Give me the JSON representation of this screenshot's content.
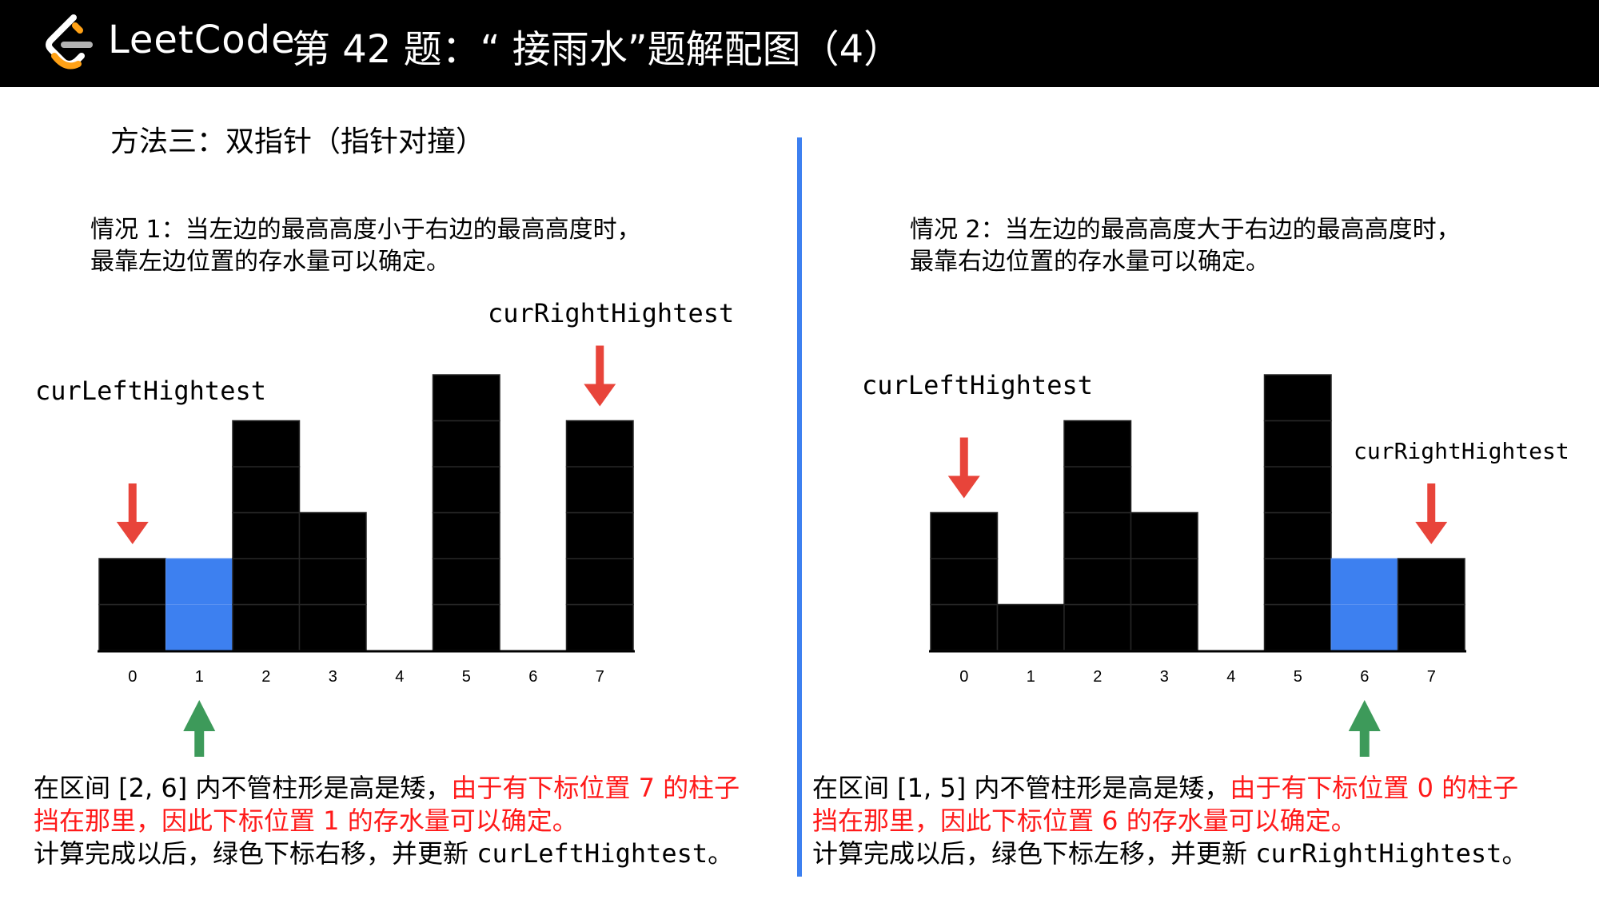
{
  "header": {
    "brand": "LeetCode",
    "title": "第 42 题：“ 接雨水”题解配图（4）"
  },
  "method_title": "方法三：双指针（指针对撞）",
  "left": {
    "case_line1": "情况 1：当左边的最高高度小于右边的最高高度时，",
    "case_line2": "最靠左边位置的存水量可以确定。",
    "left_label": "curLeftHightest",
    "right_label": "curRightHightest",
    "bottom_line1_black": "在区间 [2, 6] 内不管柱形是高是矮，",
    "bottom_line1_red": "由于有下标位置 7 的柱子",
    "bottom_line2_red": "挡在那里，因此下标位置 1 的存水量可以确定。",
    "bottom_line3_prefix": "计算完成以后，绿色下标右移，并更新 ",
    "bottom_line3_code": "curLeftHightest",
    "bottom_line3_suffix": "。"
  },
  "right": {
    "case_line1": "情况 2：当左边的最高高度大于右边的最高高度时，",
    "case_line2": "最靠右边位置的存水量可以确定。",
    "left_label": "curLeftHightest",
    "right_label": "curRightHightest",
    "bottom_line1_black": "在区间 [1, 5] 内不管柱形是高是矮，",
    "bottom_line1_red": "由于有下标位置 0 的柱子",
    "bottom_line2_red": "挡在那里，因此下标位置  6  的存水量可以确定。",
    "bottom_line3_prefix": "计算完成以后，绿色下标左移，并更新 ",
    "bottom_line3_code": "curRightHightest",
    "bottom_line3_suffix": "。"
  },
  "colors": {
    "bar": "#000000",
    "water": "#3d80f0",
    "red_arrow": "#e8443a",
    "green_arrow": "#3d9a5a",
    "divider": "#3d80f0"
  },
  "chart_data": [
    {
      "type": "bar",
      "categories": [
        "0",
        "1",
        "2",
        "3",
        "4",
        "5",
        "6",
        "7"
      ],
      "series": [
        {
          "values": [
            2,
            0,
            5,
            3,
            0,
            6,
            0,
            5
          ]
        },
        {
          "values": [
            0,
            2,
            0,
            0,
            0,
            0,
            0,
            0
          ]
        }
      ],
      "red_arrows_at": [
        0,
        7
      ],
      "green_arrow_at": 1
    },
    {
      "type": "bar",
      "categories": [
        "0",
        "1",
        "2",
        "3",
        "4",
        "5",
        "6",
        "7"
      ],
      "series": [
        {
          "values": [
            3,
            1,
            5,
            3,
            0,
            6,
            0,
            2
          ]
        },
        {
          "values": [
            0,
            0,
            0,
            0,
            0,
            0,
            2,
            0
          ]
        }
      ],
      "red_arrows_at": [
        0,
        7
      ],
      "green_arrow_at": 6
    }
  ]
}
